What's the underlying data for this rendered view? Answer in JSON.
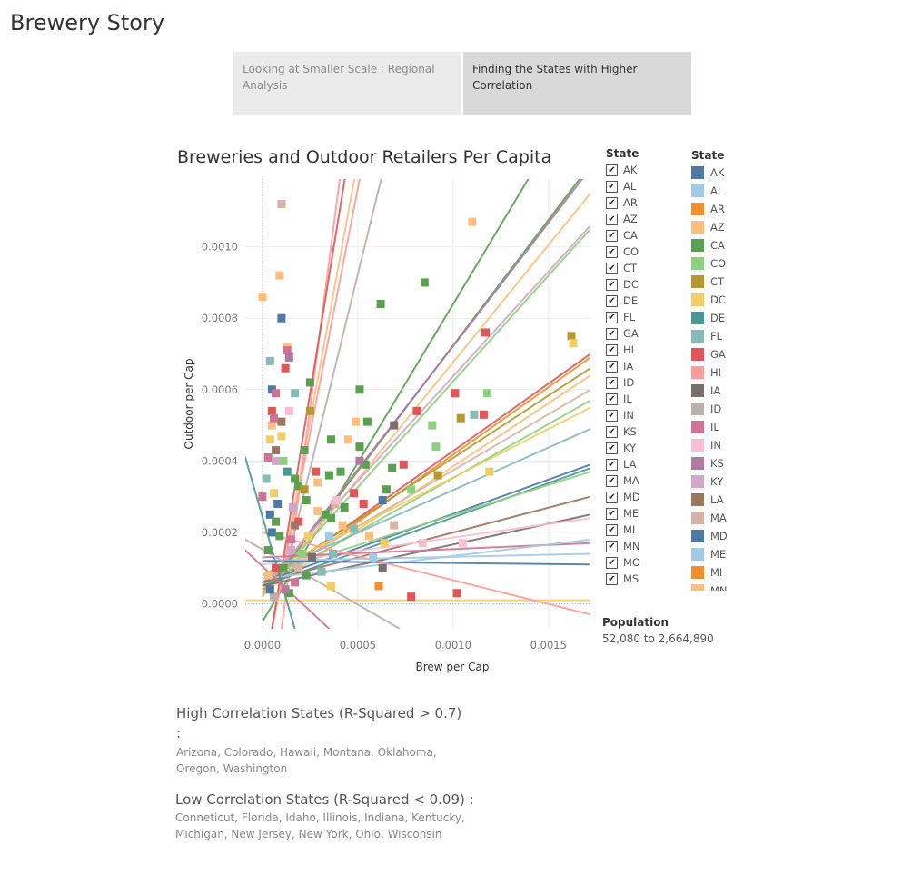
{
  "story": {
    "title": "Brewery Story"
  },
  "tabs": [
    {
      "label": "Looking at Smaller Scale : Regional Analysis"
    },
    {
      "label": "Finding the States with Higher Correlation"
    }
  ],
  "filter_legend": {
    "title": "State"
  },
  "color_legend": {
    "title": "State"
  },
  "size_legend": {
    "title": "Population",
    "range": "52,080 to 2,664,890"
  },
  "notes": {
    "high_title": "High Correlation States (R-Squared > 0.7)",
    "high_colon": ":",
    "high_body": "Arizona, Colorado, Hawaii, Montana, Oklahoma, Oregon, Washington",
    "low_title": "Low Correlation States (R-Squared < 0.09) :",
    "low_body": "Conneticut, Florida, Idaho, Illinois, Indiana, Kentucky, Michigan, New Jersey, New York, Ohio, Wisconsin"
  },
  "chart_data": {
    "type": "scatter",
    "title": "Breweries and Outdoor Retailers Per Capita",
    "xlabel": "Brew per Cap",
    "ylabel": "Outdoor per Cap",
    "xlim": [
      -9e-05,
      0.00172
    ],
    "ylim": [
      -7e-05,
      0.00119
    ],
    "x_ticks": [
      "0.0000",
      "0.0005",
      "0.0010",
      "0.0015"
    ],
    "x_tick_values": [
      0,
      0.0005,
      0.001,
      0.0015
    ],
    "y_ticks": [
      "0.0000",
      "0.0002",
      "0.0004",
      "0.0006",
      "0.0008",
      "0.0010"
    ],
    "y_tick_values": [
      0,
      0.0002,
      0.0004,
      0.0006,
      0.0008,
      0.001
    ],
    "marker": "square",
    "states": [
      "AK",
      "AL",
      "AR",
      "AZ",
      "CA",
      "CO",
      "CT",
      "DC",
      "DE",
      "FL",
      "GA",
      "HI",
      "IA",
      "ID",
      "IL",
      "IN",
      "KS",
      "KY",
      "LA",
      "MA",
      "MD",
      "ME",
      "MI",
      "MN",
      "MO",
      "MS"
    ],
    "colors": {
      "AK": "#4e79a7",
      "AL": "#a0cbe8",
      "AR": "#f28e2b",
      "AZ": "#ffbe7d",
      "CA": "#59a14f",
      "CO": "#8cd17d",
      "CT": "#b6992d",
      "DC": "#f1ce63",
      "DE": "#499894",
      "FL": "#86bcb6",
      "GA": "#e15759",
      "HI": "#ff9d9a",
      "IA": "#79706e",
      "ID": "#bab0ac",
      "IL": "#d37295",
      "IN": "#fabfd2",
      "KS": "#b07aa1",
      "KY": "#d4a6c8",
      "LA": "#9d7660",
      "MA": "#d7b5a6",
      "MD": "#4e79a7",
      "ME": "#a0cbe8",
      "MI": "#f28e2b",
      "MN": "#ffbe7d",
      "MO": "#59a14f",
      "MS": "#8cd17d"
    },
    "points": [
      {
        "state": "MA",
        "x": 0.0001,
        "y": 0.00112
      },
      {
        "state": "AZ",
        "x": 0.0011,
        "y": 0.00107
      },
      {
        "state": "CA",
        "x": 0.00085,
        "y": 0.0009
      },
      {
        "state": "AZ",
        "x": 9e-05,
        "y": 0.00092
      },
      {
        "state": "AZ",
        "x": 0.0,
        "y": 0.00086
      },
      {
        "state": "CA",
        "x": 0.00062,
        "y": 0.00084
      },
      {
        "state": "AK",
        "x": 0.0001,
        "y": 0.0008
      },
      {
        "state": "GA",
        "x": 0.00117,
        "y": 0.00076
      },
      {
        "state": "CT",
        "x": 0.00162,
        "y": 0.00075
      },
      {
        "state": "DC",
        "x": 0.00163,
        "y": 0.00073
      },
      {
        "state": "AZ",
        "x": 0.00013,
        "y": 0.00072
      },
      {
        "state": "IL",
        "x": 0.00013,
        "y": 0.00071
      },
      {
        "state": "KS",
        "x": 0.00014,
        "y": 0.00069
      },
      {
        "state": "FL",
        "x": 4e-05,
        "y": 0.00068
      },
      {
        "state": "GA",
        "x": 0.00012,
        "y": 0.00066
      },
      {
        "state": "CA",
        "x": 0.00025,
        "y": 0.00062
      },
      {
        "state": "CA",
        "x": 0.00051,
        "y": 0.0006
      },
      {
        "state": "AK",
        "x": 5e-05,
        "y": 0.0006
      },
      {
        "state": "IL",
        "x": 7e-05,
        "y": 0.00059
      },
      {
        "state": "FL",
        "x": 0.00017,
        "y": 0.00059
      },
      {
        "state": "GA",
        "x": 0.00101,
        "y": 0.00059
      },
      {
        "state": "CO",
        "x": 0.00118,
        "y": 0.00059
      },
      {
        "state": "GA",
        "x": 0.00081,
        "y": 0.00054
      },
      {
        "state": "GA",
        "x": 0.00116,
        "y": 0.00053
      },
      {
        "state": "CT",
        "x": 0.00104,
        "y": 0.00052
      },
      {
        "state": "FL",
        "x": 0.00111,
        "y": 0.00053
      },
      {
        "state": "CA",
        "x": 0.00055,
        "y": 0.00051
      },
      {
        "state": "IA",
        "x": 0.00069,
        "y": 0.0005
      },
      {
        "state": "CO",
        "x": 0.00089,
        "y": 0.0005
      },
      {
        "state": "AZ",
        "x": 0.00049,
        "y": 0.00051
      },
      {
        "state": "IN",
        "x": 0.00014,
        "y": 0.00054
      },
      {
        "state": "DC",
        "x": 0.0001,
        "y": 0.00047
      },
      {
        "state": "GA",
        "x": 5e-05,
        "y": 0.00054
      },
      {
        "state": "CT",
        "x": 0.00025,
        "y": 0.00054
      },
      {
        "state": "LA",
        "x": 0.0001,
        "y": 0.00051
      },
      {
        "state": "AZ",
        "x": 5e-05,
        "y": 0.0005
      },
      {
        "state": "IL",
        "x": 6e-05,
        "y": 0.00052
      },
      {
        "state": "AZ",
        "x": 0.00045,
        "y": 0.00046
      },
      {
        "state": "CA",
        "x": 0.00036,
        "y": 0.00046
      },
      {
        "state": "DC",
        "x": 4e-05,
        "y": 0.00046
      },
      {
        "state": "CA",
        "x": 0.00051,
        "y": 0.00044
      },
      {
        "state": "LA",
        "x": 7e-05,
        "y": 0.00043
      },
      {
        "state": "CA",
        "x": 0.00022,
        "y": 0.00043
      },
      {
        "state": "CO",
        "x": 0.00091,
        "y": 0.00044
      },
      {
        "state": "CT",
        "x": 0.00092,
        "y": 0.00036
      },
      {
        "state": "DC",
        "x": 0.00119,
        "y": 0.00037
      },
      {
        "state": "CA",
        "x": 0.00068,
        "y": 0.00038
      },
      {
        "state": "GA",
        "x": 0.00074,
        "y": 0.00039
      },
      {
        "state": "CA",
        "x": 0.00054,
        "y": 0.00039
      },
      {
        "state": "KS",
        "x": 0.00051,
        "y": 0.0004
      },
      {
        "state": "CA",
        "x": 0.00041,
        "y": 0.00037
      },
      {
        "state": "IL",
        "x": 3e-05,
        "y": 0.00041
      },
      {
        "state": "CO",
        "x": 0.00011,
        "y": 0.0004
      },
      {
        "state": "KY",
        "x": 7e-05,
        "y": 0.0004
      },
      {
        "state": "DE",
        "x": 0.00013,
        "y": 0.00037
      },
      {
        "state": "CA",
        "x": 0.00017,
        "y": 0.00035
      },
      {
        "state": "FL",
        "x": 2e-05,
        "y": 0.00035
      },
      {
        "state": "AZ",
        "x": 0.00029,
        "y": 0.00034
      },
      {
        "state": "GA",
        "x": 0.00028,
        "y": 0.00037
      },
      {
        "state": "CA",
        "x": 0.00035,
        "y": 0.00036
      },
      {
        "state": "CA",
        "x": 0.00019,
        "y": 0.00033
      },
      {
        "state": "CT",
        "x": 0.00022,
        "y": 0.00032
      },
      {
        "state": "GA",
        "x": 0.00048,
        "y": 0.00031
      },
      {
        "state": "CA",
        "x": 0.00065,
        "y": 0.00032
      },
      {
        "state": "CO",
        "x": 0.00078,
        "y": 0.00032
      },
      {
        "state": "MD",
        "x": 0.00063,
        "y": 0.00029
      },
      {
        "state": "CA",
        "x": 0.00023,
        "y": 0.00029
      },
      {
        "state": "IL",
        "x": 0.0,
        "y": 0.0003
      },
      {
        "state": "DC",
        "x": 6e-05,
        "y": 0.00031
      },
      {
        "state": "AK",
        "x": 8e-05,
        "y": 0.00028
      },
      {
        "state": "KY",
        "x": 0.00016,
        "y": 0.00027
      },
      {
        "state": "GA",
        "x": 0.00053,
        "y": 0.00028
      },
      {
        "state": "CA",
        "x": 0.00043,
        "y": 0.00027
      },
      {
        "state": "MA",
        "x": 0.00038,
        "y": 0.00028
      },
      {
        "state": "IN",
        "x": 0.00039,
        "y": 0.00029
      },
      {
        "state": "CA",
        "x": 0.00033,
        "y": 0.00025
      },
      {
        "state": "AZ",
        "x": 0.00029,
        "y": 0.00026
      },
      {
        "state": "AK",
        "x": 4e-05,
        "y": 0.00025
      },
      {
        "state": "CA",
        "x": 7e-05,
        "y": 0.00023
      },
      {
        "state": "GA",
        "x": 0.00019,
        "y": 0.00023
      },
      {
        "state": "LA",
        "x": 0.00017,
        "y": 0.00022
      },
      {
        "state": "CA",
        "x": 0.00036,
        "y": 0.00024
      },
      {
        "state": "AZ",
        "x": 0.00042,
        "y": 0.00022
      },
      {
        "state": "FL",
        "x": 0.00048,
        "y": 0.00021
      },
      {
        "state": "MA",
        "x": 0.00069,
        "y": 0.00022
      },
      {
        "state": "AK",
        "x": 5e-05,
        "y": 0.0002
      },
      {
        "state": "CA",
        "x": 9e-05,
        "y": 0.00019
      },
      {
        "state": "DC",
        "x": 0.00024,
        "y": 0.00019
      },
      {
        "state": "IL",
        "x": 0.00015,
        "y": 0.00018
      },
      {
        "state": "AL",
        "x": 0.00035,
        "y": 0.00019
      },
      {
        "state": "AZ",
        "x": 0.00056,
        "y": 0.00019
      },
      {
        "state": "DC",
        "x": 0.00064,
        "y": 0.00017
      },
      {
        "state": "IN",
        "x": 0.00084,
        "y": 0.00017
      },
      {
        "state": "FL",
        "x": 0.00037,
        "y": 0.00014
      },
      {
        "state": "KY",
        "x": 0.00015,
        "y": 0.00015
      },
      {
        "state": "CA",
        "x": 3e-05,
        "y": 0.00015
      },
      {
        "state": "CO",
        "x": 0.00021,
        "y": 0.00014
      },
      {
        "state": "IA",
        "x": 0.00026,
        "y": 0.00013
      },
      {
        "state": "AL",
        "x": 0.00058,
        "y": 0.00013
      },
      {
        "state": "IA",
        "x": 0.00063,
        "y": 0.0001
      },
      {
        "state": "CA",
        "x": 0.00011,
        "y": 0.0001
      },
      {
        "state": "GA",
        "x": 7e-05,
        "y": 0.0001
      },
      {
        "state": "MA",
        "x": 0.00019,
        "y": 0.0001
      },
      {
        "state": "CA",
        "x": 0.00023,
        "y": 8e-05
      },
      {
        "state": "FL",
        "x": 0.00031,
        "y": 9e-05
      },
      {
        "state": "AZ",
        "x": 3e-05,
        "y": 8e-05
      },
      {
        "state": "IL",
        "x": 0.00017,
        "y": 6e-05
      },
      {
        "state": "DC",
        "x": 0.00036,
        "y": 5e-05
      },
      {
        "state": "AR",
        "x": 0.00061,
        "y": 5e-05
      },
      {
        "state": "GA",
        "x": 0.00102,
        "y": 3e-05
      },
      {
        "state": "GA",
        "x": 0.00078,
        "y": 2e-05
      },
      {
        "state": "IN",
        "x": 0.00105,
        "y": 0.00017
      },
      {
        "state": "ID",
        "x": 6e-05,
        "y": 2e-05
      },
      {
        "state": "AK",
        "x": 4e-05,
        "y": 4e-05
      },
      {
        "state": "CA",
        "x": 0.00014,
        "y": 3e-05
      },
      {
        "state": "KS",
        "x": 0.00012,
        "y": 4e-05
      }
    ],
    "trend_lines": [
      {
        "state": "CA",
        "x0": 0.0,
        "y0": -5e-05,
        "x1": 0.00172,
        "y1": 0.00148
      },
      {
        "state": "AZ",
        "x0": 5e-05,
        "y0": -7e-05,
        "x1": 0.00052,
        "y1": 0.0013
      },
      {
        "state": "HI",
        "x0": 5e-05,
        "y0": -7e-05,
        "x1": 0.00055,
        "y1": 0.0013
      },
      {
        "state": "ID",
        "x0": 0.0001,
        "y0": 5e-05,
        "x1": 0.00065,
        "y1": 0.00125
      },
      {
        "state": "HI",
        "x0": 0.0001,
        "y0": -7e-05,
        "x1": 0.00042,
        "y1": 0.00125
      },
      {
        "state": "GA",
        "x0": 5e-05,
        "y0": -7e-05,
        "x1": 0.00045,
        "y1": 0.00125
      },
      {
        "state": "MO",
        "x0": 0.0,
        "y0": 2e-05,
        "x1": 0.00172,
        "y1": 0.00123
      },
      {
        "state": "KS",
        "x0": 0.0,
        "y0": 3e-05,
        "x1": 0.00172,
        "y1": 0.00122
      },
      {
        "state": "AZ",
        "x0": 0.0,
        "y0": 2e-05,
        "x1": 0.00172,
        "y1": 0.00115
      },
      {
        "state": "KY",
        "x0": 0.0,
        "y0": 5e-05,
        "x1": 0.00172,
        "y1": 0.00106
      },
      {
        "state": "CO",
        "x0": 0.0,
        "y0": 3e-05,
        "x1": 0.00172,
        "y1": 0.00105
      },
      {
        "state": "GA",
        "x0": 0.0,
        "y0": 5e-05,
        "x1": 0.00172,
        "y1": 0.0007
      },
      {
        "state": "AR",
        "x0": 0.0,
        "y0": 4e-05,
        "x1": 0.00172,
        "y1": 0.00069
      },
      {
        "state": "CT",
        "x0": 0.0,
        "y0": 6e-05,
        "x1": 0.00172,
        "y1": 0.00066
      },
      {
        "state": "AZ",
        "x0": 0.0,
        "y0": 3e-05,
        "x1": 0.00172,
        "y1": 0.00064
      },
      {
        "state": "MA",
        "x0": 0.0,
        "y0": 6e-05,
        "x1": 0.00172,
        "y1": 0.0006
      },
      {
        "state": "CO",
        "x0": 0.0,
        "y0": 5e-05,
        "x1": 0.00172,
        "y1": 0.00057
      },
      {
        "state": "DC",
        "x0": 0.0,
        "y0": 8e-05,
        "x1": 0.00172,
        "y1": 0.00055
      },
      {
        "state": "FL",
        "x0": 0.0,
        "y0": 8e-05,
        "x1": 0.00172,
        "y1": 0.00049
      },
      {
        "state": "MD",
        "x0": 0.0,
        "y0": 6e-05,
        "x1": 0.00172,
        "y1": 0.00039
      },
      {
        "state": "DE",
        "x0": 0.0,
        "y0": 5e-05,
        "x1": 0.00172,
        "y1": 0.00038
      },
      {
        "state": "CO",
        "x0": 0.0,
        "y0": 8e-05,
        "x1": 0.00172,
        "y1": 0.00037
      },
      {
        "state": "LA",
        "x0": 0.0,
        "y0": 6e-05,
        "x1": 0.00172,
        "y1": 0.0003
      },
      {
        "state": "IA",
        "x0": 0.0,
        "y0": 5e-05,
        "x1": 0.00172,
        "y1": 0.00025
      },
      {
        "state": "IN",
        "x0": 0.0,
        "y0": 0.00011,
        "x1": 0.00172,
        "y1": 0.00024
      },
      {
        "state": "IL",
        "x0": 0.0,
        "y0": 0.00013,
        "x1": 0.00172,
        "y1": 0.00017
      },
      {
        "state": "ME",
        "x0": 0.0,
        "y0": 7e-05,
        "x1": 0.00172,
        "y1": 0.00018
      },
      {
        "state": "AL",
        "x0": 0.0,
        "y0": 0.00012,
        "x1": 0.00172,
        "y1": 0.00014
      },
      {
        "state": "AK",
        "x0": 0.0,
        "y0": 0.00012,
        "x1": 0.00172,
        "y1": 0.00011
      },
      {
        "state": "DC",
        "x0": -9e-05,
        "y0": 1e-05,
        "x1": 0.00172,
        "y1": 1e-05
      },
      {
        "state": "HI",
        "x0": 0.0,
        "y0": 0.0002,
        "x1": 0.00172,
        "y1": -3e-05
      },
      {
        "state": "DE",
        "x0": -9e-05,
        "y0": 0.00041,
        "x1": 0.00017,
        "y1": -7e-05
      },
      {
        "state": "ID",
        "x0": -9e-05,
        "y0": 0.00018,
        "x1": 0.00072,
        "y1": -7e-05
      },
      {
        "state": "IL",
        "x0": -9e-05,
        "y0": 0.00015,
        "x1": 0.00035,
        "y1": -7e-05
      }
    ]
  }
}
